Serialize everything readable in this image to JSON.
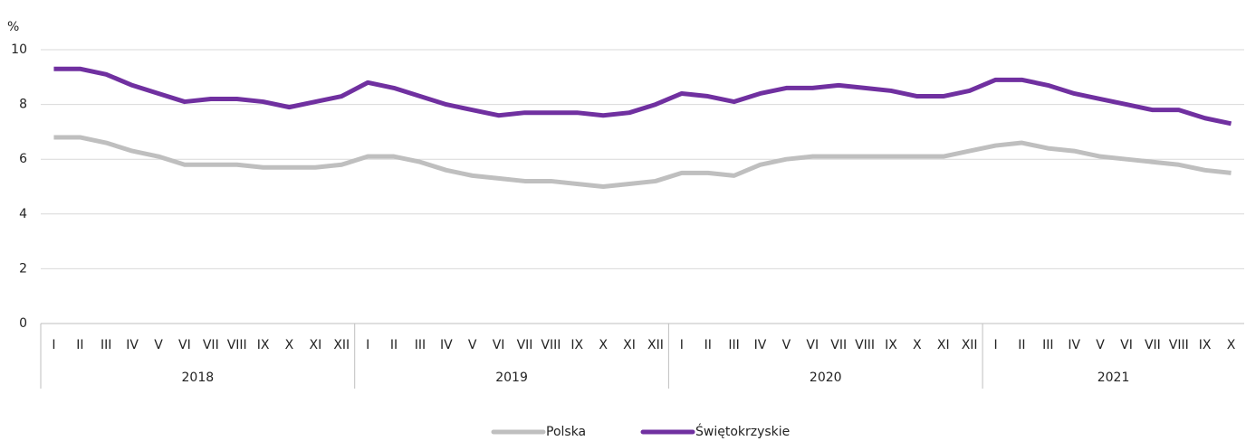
{
  "chart_data": {
    "type": "line",
    "y_label": "%",
    "groups": [
      {
        "label": "2018",
        "categories": [
          "I",
          "II",
          "III",
          "IV",
          "V",
          "VI",
          "VII",
          "VIII",
          "IX",
          "X",
          "XI",
          "XII"
        ]
      },
      {
        "label": "2019",
        "categories": [
          "I",
          "II",
          "III",
          "IV",
          "V",
          "VI",
          "VII",
          "VIII",
          "IX",
          "X",
          "XI",
          "XII"
        ]
      },
      {
        "label": "2020",
        "categories": [
          "I",
          "II",
          "III",
          "IV",
          "V",
          "VI",
          "VII",
          "VIII",
          "IX",
          "X",
          "XI",
          "XII"
        ]
      },
      {
        "label": "2021",
        "categories": [
          "I",
          "II",
          "III",
          "IV",
          "V",
          "VI",
          "VII",
          "VIII",
          "IX",
          "X"
        ]
      }
    ],
    "series": [
      {
        "name": "Polska",
        "color": "#bfbfbf",
        "values": [
          6.8,
          6.8,
          6.6,
          6.3,
          6.1,
          5.8,
          5.8,
          5.8,
          5.7,
          5.7,
          5.7,
          5.8,
          6.1,
          6.1,
          5.9,
          5.6,
          5.4,
          5.3,
          5.2,
          5.2,
          5.1,
          5.0,
          5.1,
          5.2,
          5.5,
          5.5,
          5.4,
          5.8,
          6.0,
          6.1,
          6.1,
          6.1,
          6.1,
          6.1,
          6.1,
          6.3,
          6.5,
          6.6,
          6.4,
          6.3,
          6.1,
          6.0,
          5.9,
          5.8,
          5.6,
          5.5
        ]
      },
      {
        "name": "Świętokrzyskie",
        "color": "#7030a0",
        "values": [
          9.3,
          9.3,
          9.1,
          8.7,
          8.4,
          8.1,
          8.2,
          8.2,
          8.1,
          7.9,
          8.1,
          8.3,
          8.8,
          8.6,
          8.3,
          8.0,
          7.8,
          7.6,
          7.7,
          7.7,
          7.7,
          7.6,
          7.7,
          8.0,
          8.4,
          8.3,
          8.1,
          8.4,
          8.6,
          8.6,
          8.7,
          8.6,
          8.5,
          8.3,
          8.3,
          8.5,
          8.9,
          8.9,
          8.7,
          8.4,
          8.2,
          8.0,
          7.8,
          7.8,
          7.5,
          7.3
        ]
      }
    ],
    "ylim": [
      0,
      10
    ],
    "yticks": [
      0,
      2,
      4,
      6,
      8,
      10
    ],
    "grid": true,
    "legend": "bottom"
  }
}
